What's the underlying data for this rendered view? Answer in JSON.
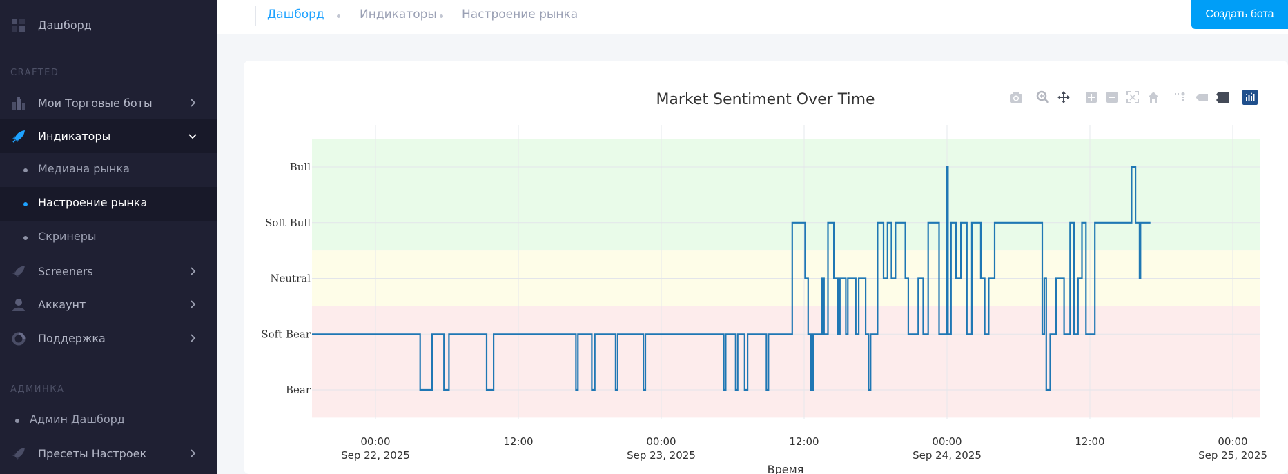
{
  "sidebar": {
    "dashboard": "Дашборд",
    "section_crafted": "CRAFTED",
    "items": [
      {
        "label": "Мои Торговые боты",
        "icon": "bots-icon"
      },
      {
        "label": "Индикаторы",
        "icon": "rocket-icon"
      },
      {
        "label": "Screeners",
        "icon": "rocket-icon"
      },
      {
        "label": "Аккаунт",
        "icon": "user-icon"
      },
      {
        "label": "Поддержка",
        "icon": "support-icon"
      }
    ],
    "sub_items": [
      "Медиана рынка",
      "Настроение рынка",
      "Скринеры"
    ],
    "section_admin": "АДМИНКА",
    "admin_items": [
      {
        "label": "Админ Дашборд"
      },
      {
        "label": "Пресеты Настроек",
        "icon": "rocket-icon"
      }
    ]
  },
  "breadcrumb": [
    "Дашборд",
    "Индикаторы",
    "Настроение рынка"
  ],
  "header": {
    "create_bot_label": "Создать бота"
  },
  "colors": {
    "accent": "#009ef7",
    "line": "#1f77b4",
    "bull_zone": "#e9fbe9",
    "neutral_zone": "#fefde8",
    "bear_zone": "#fdecec"
  },
  "chart_data": {
    "type": "line",
    "title": "Market Sentiment Over Time",
    "xlabel": "Время",
    "ylabel": "",
    "line_shape": "step",
    "y_categories": [
      "Bear",
      "Soft Bear",
      "Neutral",
      "Soft Bull",
      "Bull"
    ],
    "x_tick_labels": [
      {
        "value": "2025-09-22 00:00",
        "line1": "00:00",
        "line2": "Sep 22, 2025"
      },
      {
        "value": "2025-09-22 12:00",
        "line1": "12:00",
        "line2": ""
      },
      {
        "value": "2025-09-23 00:00",
        "line1": "00:00",
        "line2": "Sep 23, 2025"
      },
      {
        "value": "2025-09-23 12:00",
        "line1": "12:00",
        "line2": ""
      },
      {
        "value": "2025-09-24 00:00",
        "line1": "00:00",
        "line2": "Sep 24, 2025"
      },
      {
        "value": "2025-09-24 12:00",
        "line1": "12:00",
        "line2": ""
      },
      {
        "value": "2025-09-25 00:00",
        "line1": "00:00",
        "line2": "Sep 25, 2025"
      }
    ],
    "xlim": [
      "2025-09-21 18:40",
      "2025-09-25 02:20"
    ],
    "zones": [
      {
        "name": "bear",
        "from": -0.5,
        "to": 1.5
      },
      {
        "name": "neutral",
        "from": 1.5,
        "to": 2.5
      },
      {
        "name": "bull",
        "from": 2.5,
        "to": 4.5
      }
    ],
    "grid": true,
    "series": [
      {
        "points": [
          [
            "2025-09-21 18:40",
            1
          ],
          [
            "2025-09-22 03:45",
            0
          ],
          [
            "2025-09-22 04:45",
            1
          ],
          [
            "2025-09-22 05:45",
            0
          ],
          [
            "2025-09-22 06:10",
            1
          ],
          [
            "2025-09-22 09:20",
            0
          ],
          [
            "2025-09-22 09:55",
            1
          ],
          [
            "2025-09-22 16:50",
            0
          ],
          [
            "2025-09-22 17:00",
            1
          ],
          [
            "2025-09-22 18:10",
            0
          ],
          [
            "2025-09-22 18:25",
            1
          ],
          [
            "2025-09-22 20:10",
            0
          ],
          [
            "2025-09-22 20:20",
            1
          ],
          [
            "2025-09-22 22:30",
            0
          ],
          [
            "2025-09-22 22:40",
            1
          ],
          [
            "2025-09-23 05:15",
            0
          ],
          [
            "2025-09-23 05:25",
            1
          ],
          [
            "2025-09-23 06:15",
            0
          ],
          [
            "2025-09-23 06:25",
            1
          ],
          [
            "2025-09-23 07:00",
            0
          ],
          [
            "2025-09-23 07:15",
            1
          ],
          [
            "2025-09-23 08:50",
            0
          ],
          [
            "2025-09-23 09:00",
            1
          ],
          [
            "2025-09-23 11:00",
            3
          ],
          [
            "2025-09-23 12:05",
            2
          ],
          [
            "2025-09-23 12:20",
            1
          ],
          [
            "2025-09-23 12:35",
            0
          ],
          [
            "2025-09-23 12:45",
            1
          ],
          [
            "2025-09-23 13:30",
            2
          ],
          [
            "2025-09-23 13:40",
            1
          ],
          [
            "2025-09-23 14:00",
            3
          ],
          [
            "2025-09-23 14:30",
            2
          ],
          [
            "2025-09-23 14:50",
            1
          ],
          [
            "2025-09-23 15:00",
            2
          ],
          [
            "2025-09-23 15:30",
            1
          ],
          [
            "2025-09-23 15:40",
            2
          ],
          [
            "2025-09-23 16:20",
            1
          ],
          [
            "2025-09-23 16:35",
            2
          ],
          [
            "2025-09-23 17:10",
            1
          ],
          [
            "2025-09-23 17:25",
            0
          ],
          [
            "2025-09-23 17:35",
            1
          ],
          [
            "2025-09-23 18:10",
            3
          ],
          [
            "2025-09-23 18:40",
            2
          ],
          [
            "2025-09-23 19:00",
            3
          ],
          [
            "2025-09-23 19:20",
            2
          ],
          [
            "2025-09-23 19:40",
            3
          ],
          [
            "2025-09-23 20:30",
            2
          ],
          [
            "2025-09-23 20:45",
            1
          ],
          [
            "2025-09-23 21:35",
            2
          ],
          [
            "2025-09-23 22:00",
            1
          ],
          [
            "2025-09-23 22:25",
            3
          ],
          [
            "2025-09-23 23:20",
            1
          ],
          [
            "2025-09-24 00:00",
            4
          ],
          [
            "2025-09-24 00:05",
            1
          ],
          [
            "2025-09-24 00:20",
            3
          ],
          [
            "2025-09-24 00:45",
            2
          ],
          [
            "2025-09-24 01:10",
            3
          ],
          [
            "2025-09-24 01:40",
            1
          ],
          [
            "2025-09-24 02:05",
            3
          ],
          [
            "2025-09-24 02:50",
            2
          ],
          [
            "2025-09-24 03:10",
            1
          ],
          [
            "2025-09-24 03:30",
            2
          ],
          [
            "2025-09-24 04:00",
            3
          ],
          [
            "2025-09-24 08:00",
            1
          ],
          [
            "2025-09-24 08:10",
            2
          ],
          [
            "2025-09-24 08:20",
            0
          ],
          [
            "2025-09-24 08:40",
            1
          ],
          [
            "2025-09-24 09:10",
            2
          ],
          [
            "2025-09-24 09:50",
            1
          ],
          [
            "2025-09-24 10:20",
            3
          ],
          [
            "2025-09-24 10:40",
            1
          ],
          [
            "2025-09-24 11:00",
            2
          ],
          [
            "2025-09-24 11:20",
            3
          ],
          [
            "2025-09-24 11:40",
            1
          ],
          [
            "2025-09-24 12:25",
            3
          ],
          [
            "2025-09-24 15:30",
            4
          ],
          [
            "2025-09-24 15:50",
            3
          ],
          [
            "2025-09-24 16:10",
            2
          ],
          [
            "2025-09-24 16:15",
            3
          ],
          [
            "2025-09-24 17:05",
            3
          ]
        ]
      }
    ]
  }
}
